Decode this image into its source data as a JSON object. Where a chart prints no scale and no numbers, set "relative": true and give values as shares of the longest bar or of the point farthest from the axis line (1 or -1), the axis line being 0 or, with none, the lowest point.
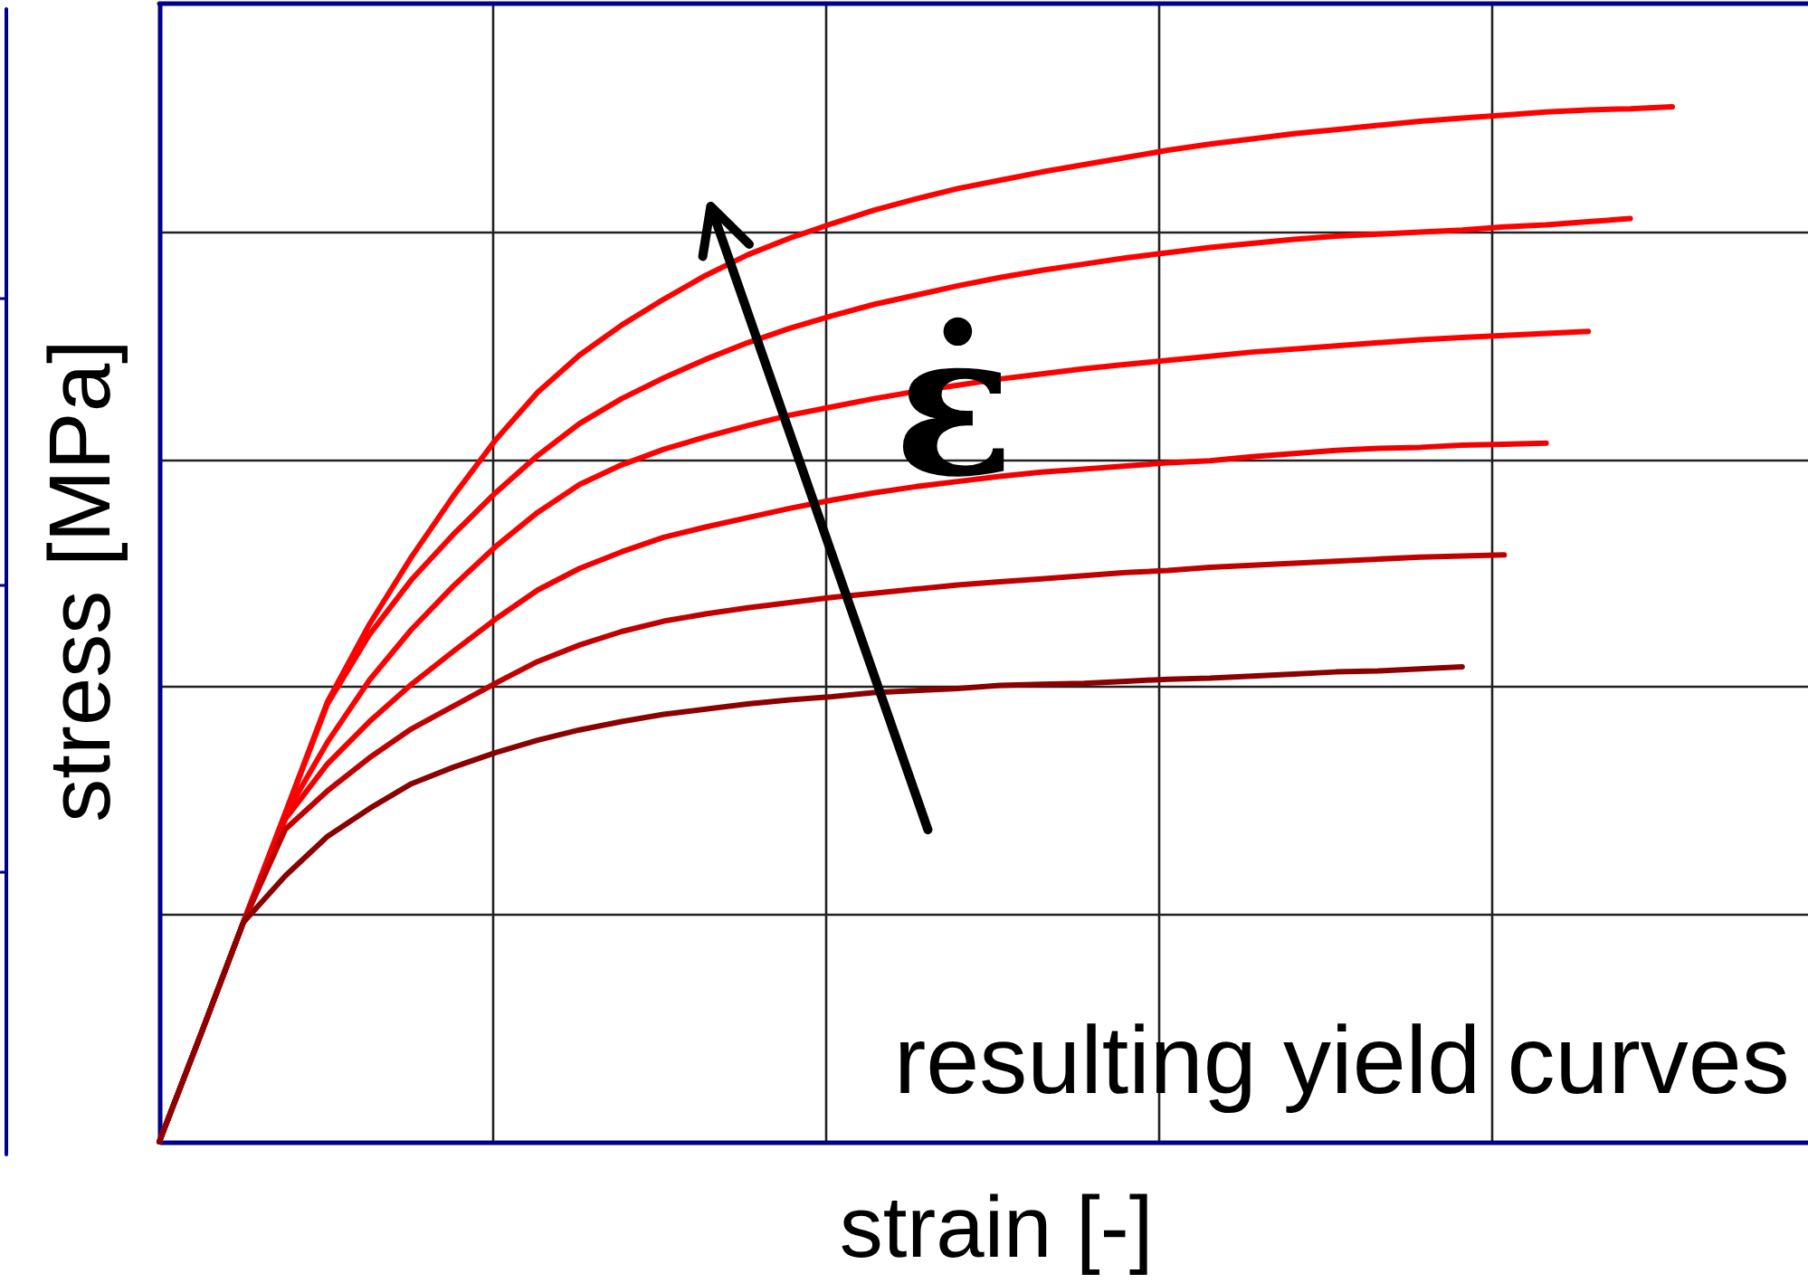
{
  "chart_data": {
    "type": "line",
    "relative": true,
    "xlabel": "strain [-]",
    "ylabel": "stress [MPa]",
    "annotations": [
      "ε̇",
      "resulting yield curves"
    ],
    "categories": [
      null,
      null,
      null,
      null,
      null,
      null,
      null,
      null,
      null,
      null,
      null,
      null,
      null,
      null,
      null,
      null,
      null,
      null,
      null,
      null,
      null,
      null,
      null,
      null,
      null,
      null,
      null,
      null,
      null,
      null,
      null,
      null,
      null,
      null,
      null,
      null,
      null
    ],
    "series": [
      {
        "color": "#ff0000",
        "values": [
          0,
          0.105,
          0.212,
          0.318,
          0.425,
          0.5,
          0.565,
          0.624,
          0.678,
          0.724,
          0.76,
          0.789,
          0.814,
          0.837,
          0.857,
          0.873,
          0.887,
          0.9,
          0.911,
          0.921,
          0.929,
          0.937,
          0.944,
          0.951,
          0.958,
          0.964,
          0.969,
          0.974,
          0.978,
          0.982,
          0.986,
          0.989,
          0.992,
          0.995,
          0.997,
          0.998,
          1.0
        ]
      },
      {
        "color": "#ff0000",
        "values": [
          0,
          0.105,
          0.212,
          0.317,
          0.423,
          0.49,
          0.543,
          0.587,
          0.627,
          0.663,
          0.694,
          0.718,
          0.738,
          0.756,
          0.772,
          0.786,
          0.798,
          0.809,
          0.818,
          0.827,
          0.835,
          0.842,
          0.848,
          0.854,
          0.859,
          0.864,
          0.868,
          0.872,
          0.875,
          0.877,
          0.879,
          0.881,
          0.884,
          0.886,
          0.889,
          0.892,
          null
        ]
      },
      {
        "color": "#ff0000",
        "values": [
          0,
          0.105,
          0.212,
          0.316,
          0.386,
          0.446,
          0.495,
          0.537,
          0.575,
          0.608,
          0.635,
          0.654,
          0.669,
          0.681,
          0.692,
          0.702,
          0.71,
          0.718,
          0.725,
          0.731,
          0.737,
          0.742,
          0.747,
          0.751,
          0.755,
          0.759,
          0.763,
          0.766,
          0.769,
          0.772,
          0.775,
          0.777,
          0.779,
          0.781,
          0.783,
          null,
          null
        ]
      },
      {
        "color": "#f20000",
        "values": [
          0,
          0.105,
          0.212,
          0.312,
          0.365,
          0.406,
          0.442,
          0.474,
          0.505,
          0.533,
          0.554,
          0.57,
          0.584,
          0.594,
          0.603,
          0.612,
          0.62,
          0.627,
          0.633,
          0.638,
          0.643,
          0.647,
          0.65,
          0.653,
          0.656,
          0.658,
          0.662,
          0.665,
          0.668,
          0.67,
          0.671,
          0.673,
          0.674,
          0.675,
          null,
          null,
          null
        ]
      },
      {
        "color": "#c00000",
        "values": [
          0,
          0.105,
          0.212,
          0.302,
          0.339,
          0.371,
          0.399,
          0.421,
          0.443,
          0.464,
          0.48,
          0.493,
          0.503,
          0.51,
          0.516,
          0.521,
          0.526,
          0.53,
          0.534,
          0.538,
          0.541,
          0.544,
          0.547,
          0.55,
          0.552,
          0.555,
          0.557,
          0.559,
          0.561,
          0.563,
          0.565,
          0.566,
          0.567,
          null,
          null,
          null,
          null
        ]
      },
      {
        "color": "#8b0000",
        "values": [
          0,
          0.105,
          0.212,
          0.257,
          0.295,
          0.322,
          0.346,
          0.362,
          0.376,
          0.388,
          0.398,
          0.406,
          0.413,
          0.418,
          0.423,
          0.427,
          0.43,
          0.434,
          0.436,
          0.438,
          0.441,
          0.442,
          0.443,
          0.445,
          0.447,
          0.448,
          0.45,
          0.452,
          0.454,
          0.455,
          0.457,
          0.459,
          null,
          null,
          null,
          null,
          null
        ]
      }
    ],
    "grid": true,
    "line_style": "solid"
  }
}
